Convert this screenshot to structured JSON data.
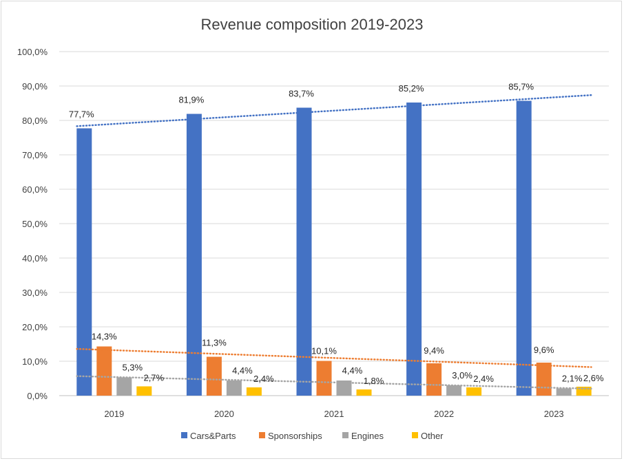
{
  "chart_data": {
    "type": "bar",
    "title": "Revenue composition 2019-2023",
    "categories": [
      "2019",
      "2020",
      "2021",
      "2022",
      "2023"
    ],
    "series": [
      {
        "name": "Cars&Parts",
        "color": "#4472C4",
        "values": [
          77.7,
          81.9,
          83.7,
          85.2,
          85.7
        ],
        "labels": [
          "77,7%",
          "81,9%",
          "83,7%",
          "85,2%",
          "85,7%"
        ]
      },
      {
        "name": "Sponsorships",
        "color": "#ED7D31",
        "values": [
          14.3,
          11.3,
          10.1,
          9.4,
          9.6
        ],
        "labels": [
          "14,3%",
          "11,3%",
          "10,1%",
          "9,4%",
          "9,6%"
        ]
      },
      {
        "name": "Engines",
        "color": "#A5A5A5",
        "values": [
          5.3,
          4.4,
          4.4,
          3.0,
          2.1
        ],
        "labels": [
          "5,3%",
          "4,4%",
          "4,4%",
          "3,0%",
          "2,1%"
        ]
      },
      {
        "name": "Other",
        "color": "#FFC000",
        "values": [
          2.7,
          2.4,
          1.8,
          2.4,
          2.6
        ],
        "labels": [
          "2,7%",
          "2,4%",
          "1,8%",
          "2,4%",
          "2,6%"
        ]
      }
    ],
    "trendlines": [
      "Cars&Parts",
      "Sponsorships",
      "Engines"
    ],
    "ylim": [
      0,
      100
    ],
    "yticks": [
      "0,0%",
      "10,0%",
      "20,0%",
      "30,0%",
      "40,0%",
      "50,0%",
      "60,0%",
      "70,0%",
      "80,0%",
      "90,0%",
      "100,0%"
    ],
    "grid": true,
    "legend_position": "bottom"
  }
}
